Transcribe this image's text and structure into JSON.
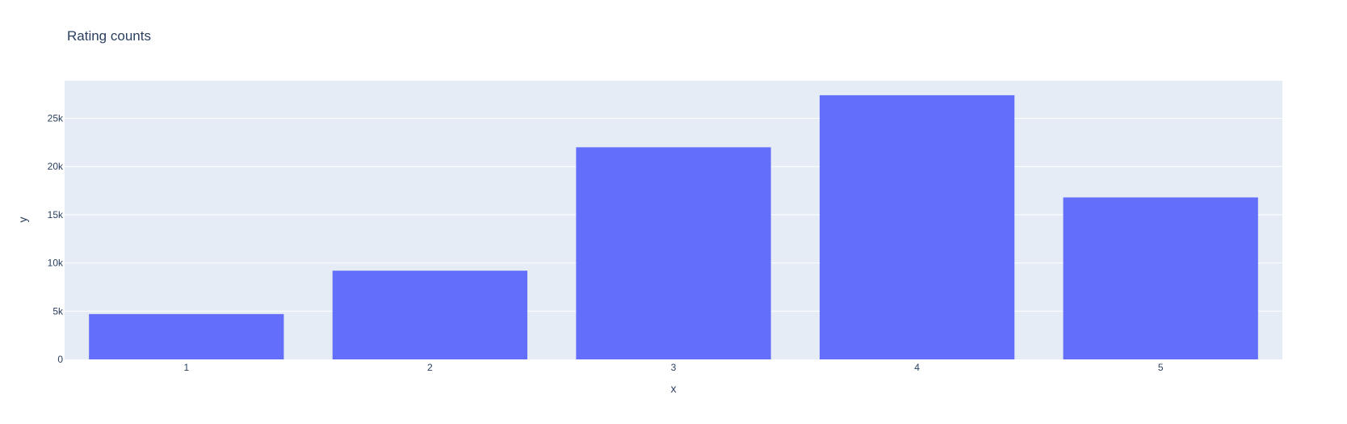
{
  "chart_data": {
    "type": "bar",
    "title": "Rating counts",
    "xlabel": "x",
    "ylabel": "y",
    "categories": [
      "1",
      "2",
      "3",
      "4",
      "5"
    ],
    "values": [
      4700,
      9200,
      22000,
      27400,
      16800
    ],
    "ylim": [
      0,
      28900
    ],
    "y_ticks": [
      0,
      5000,
      10000,
      15000,
      20000,
      25000
    ],
    "y_tick_labels": [
      "0",
      "5k",
      "10k",
      "15k",
      "20k",
      "25k"
    ],
    "grid": true,
    "legend": "none",
    "colors": {
      "bar": "#636efa",
      "plot_background": "#e5ecf6",
      "grid": "#ffffff",
      "text": "#2a3f5f"
    }
  }
}
